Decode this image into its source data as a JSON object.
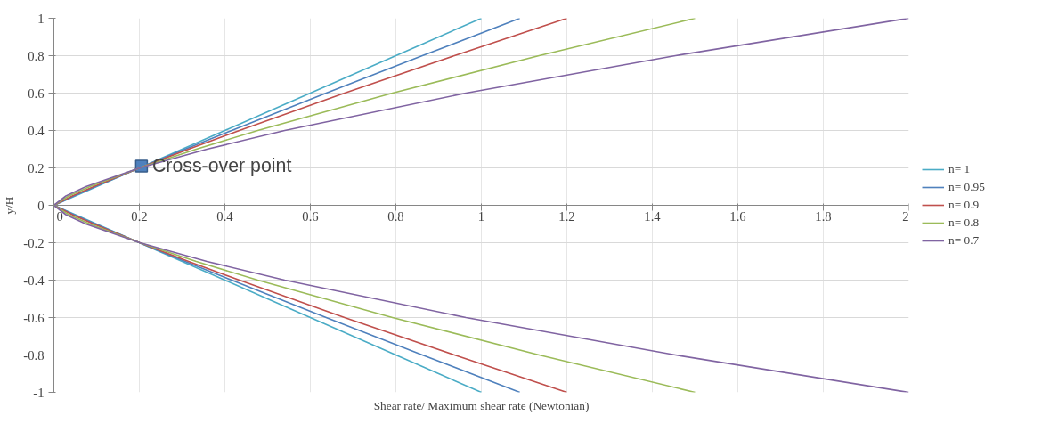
{
  "chart_data": {
    "type": "line",
    "xlabel": "Shear rate/ Maximum shear rate (Newtonian)",
    "ylabel": "y/H",
    "xlim": [
      0,
      2
    ],
    "ylim": [
      -1,
      1
    ],
    "xticks": [
      0,
      0.2,
      0.4,
      0.6,
      0.8,
      1,
      1.2,
      1.4,
      1.6,
      1.8,
      2
    ],
    "yticks": [
      -1,
      -0.8,
      -0.6,
      -0.4,
      -0.2,
      0,
      0.2,
      0.4,
      0.6,
      0.8,
      1
    ],
    "grid": true,
    "legend": "right",
    "marker": "none",
    "line_style": "solid",
    "series": [
      {
        "name": "n= 1",
        "color": "#4bacc6",
        "x": [
          1,
          0.8,
          0.6,
          0.4,
          0.3,
          0.2,
          0.1,
          0.05,
          0,
          0.05,
          0.1,
          0.2,
          0.3,
          0.4,
          0.6,
          0.8,
          1
        ],
        "values": [
          -1,
          -0.8,
          -0.6,
          -0.4,
          -0.3,
          -0.2,
          -0.1,
          -0.05,
          0,
          0.05,
          0.1,
          0.2,
          0.3,
          0.4,
          0.6,
          0.8,
          1
        ]
      },
      {
        "name": "n= 0.95",
        "color": "#4f81bd",
        "x": [
          1.09,
          0.862,
          0.637,
          0.416,
          0.307,
          0.2,
          0.097,
          0.047,
          0,
          0.047,
          0.097,
          0.2,
          0.307,
          0.416,
          0.637,
          0.862,
          1.09
        ],
        "values": [
          -1,
          -0.8,
          -0.6,
          -0.4,
          -0.3,
          -0.2,
          -0.1,
          -0.05,
          0,
          0.05,
          0.1,
          0.2,
          0.3,
          0.4,
          0.6,
          0.8,
          1
        ]
      },
      {
        "name": "n= 0.9",
        "color": "#c0504d",
        "x": [
          1.2,
          0.937,
          0.68,
          0.434,
          0.315,
          0.201,
          0.093,
          0.043,
          0,
          0.043,
          0.093,
          0.201,
          0.315,
          0.434,
          0.68,
          0.937,
          1.2
        ],
        "values": [
          -1,
          -0.8,
          -0.6,
          -0.4,
          -0.3,
          -0.2,
          -0.1,
          -0.05,
          0,
          0.05,
          0.1,
          0.2,
          0.3,
          0.4,
          0.6,
          0.8,
          1
        ]
      },
      {
        "name": "n= 0.8",
        "color": "#9bbb59",
        "x": [
          1.5,
          1.135,
          0.792,
          0.477,
          0.333,
          0.201,
          0.084,
          0.035,
          0,
          0.035,
          0.084,
          0.201,
          0.333,
          0.477,
          0.792,
          1.135,
          1.5
        ],
        "values": [
          -1,
          -0.8,
          -0.6,
          -0.4,
          -0.3,
          -0.2,
          -0.1,
          -0.05,
          0,
          0.05,
          0.1,
          0.2,
          0.3,
          0.4,
          0.6,
          0.8,
          1
        ]
      },
      {
        "name": "n= 0.7",
        "color": "#8064a2",
        "x": [
          2,
          1.454,
          0.964,
          0.54,
          0.358,
          0.201,
          0.075,
          0.028,
          0,
          0.028,
          0.075,
          0.201,
          0.358,
          0.54,
          0.964,
          1.454,
          2
        ],
        "values": [
          -1,
          -0.8,
          -0.6,
          -0.4,
          -0.3,
          -0.2,
          -0.1,
          -0.05,
          0,
          0.05,
          0.1,
          0.2,
          0.3,
          0.4,
          0.6,
          0.8,
          1
        ]
      }
    ],
    "annotations": [
      {
        "text": "Cross-over point",
        "x": 0.205,
        "y": 0.21
      }
    ]
  }
}
